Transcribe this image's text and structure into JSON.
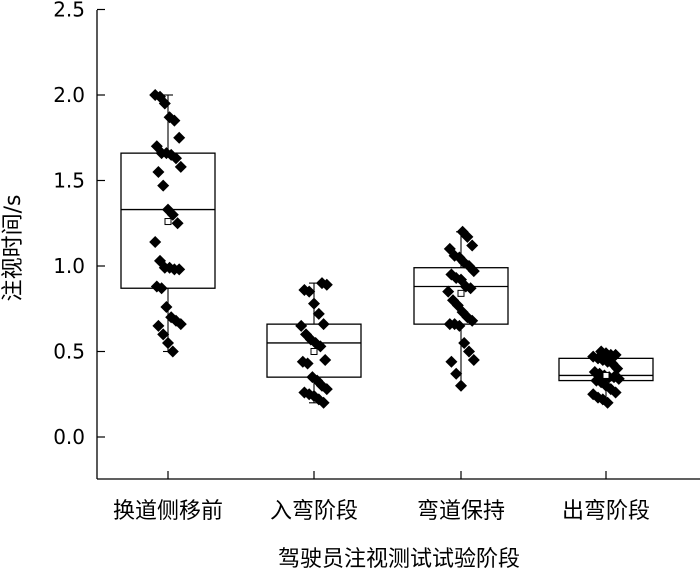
{
  "chart_data": {
    "type": "box",
    "xlabel": "驾驶员注视测试试验阶段",
    "ylabel": "注视时间/s",
    "ylim": [
      0,
      2.5
    ],
    "yticks": [
      "0.0",
      "0.5",
      "1.0",
      "1.5",
      "2.0",
      "2.5"
    ],
    "grid": false,
    "categories": [
      "换道侧移前",
      "入弯阶段",
      "弯道保持",
      "出弯阶段"
    ],
    "boxes": [
      {
        "q1": 0.87,
        "median": 1.33,
        "q3": 1.66,
        "mean": 1.26,
        "whisker_low": 0.5,
        "whisker_high": 2.0,
        "points": [
          2.0,
          1.99,
          1.95,
          1.87,
          1.85,
          1.75,
          1.7,
          1.66,
          1.66,
          1.65,
          1.63,
          1.58,
          1.55,
          1.47,
          1.33,
          1.3,
          1.25,
          1.14,
          1.03,
          0.99,
          0.99,
          0.98,
          0.98,
          0.88,
          0.87,
          0.76,
          0.7,
          0.68,
          0.66,
          0.65,
          0.6,
          0.55,
          0.5
        ]
      },
      {
        "q1": 0.35,
        "median": 0.55,
        "q3": 0.66,
        "mean": 0.5,
        "whisker_low": 0.2,
        "whisker_high": 0.9,
        "points": [
          0.9,
          0.89,
          0.86,
          0.85,
          0.78,
          0.72,
          0.66,
          0.65,
          0.6,
          0.57,
          0.55,
          0.53,
          0.45,
          0.44,
          0.43,
          0.35,
          0.33,
          0.3,
          0.28,
          0.26,
          0.25,
          0.24,
          0.22,
          0.2
        ]
      },
      {
        "q1": 0.66,
        "median": 0.88,
        "q3": 0.99,
        "mean": 0.84,
        "whisker_low": 0.3,
        "whisker_high": 1.2,
        "points": [
          1.2,
          1.17,
          1.12,
          1.1,
          1.06,
          1.05,
          1.02,
          1.0,
          0.97,
          0.95,
          0.93,
          0.92,
          0.88,
          0.87,
          0.85,
          0.8,
          0.77,
          0.73,
          0.7,
          0.68,
          0.66,
          0.66,
          0.65,
          0.55,
          0.5,
          0.45,
          0.44,
          0.37,
          0.3
        ]
      },
      {
        "q1": 0.33,
        "median": 0.36,
        "q3": 0.46,
        "mean": 0.36,
        "whisker_low": 0.2,
        "whisker_high": 0.5,
        "points": [
          0.5,
          0.49,
          0.48,
          0.48,
          0.47,
          0.46,
          0.45,
          0.44,
          0.43,
          0.4,
          0.38,
          0.37,
          0.36,
          0.35,
          0.35,
          0.34,
          0.33,
          0.32,
          0.3,
          0.28,
          0.26,
          0.25,
          0.23,
          0.22,
          0.2
        ]
      }
    ]
  }
}
